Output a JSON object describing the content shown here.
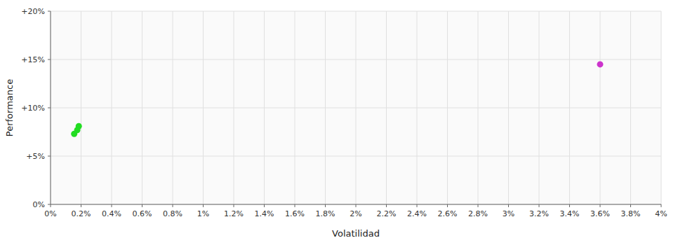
{
  "chart_data": {
    "type": "scatter",
    "xlabel": "Volatilidad",
    "ylabel": "Performance",
    "xlim": [
      0,
      0.04
    ],
    "ylim": [
      0,
      0.2
    ],
    "xticks": [
      {
        "value": 0,
        "label": "0%"
      },
      {
        "value": 0.002,
        "label": "0.2%"
      },
      {
        "value": 0.004,
        "label": "0.4%"
      },
      {
        "value": 0.006,
        "label": "0.6%"
      },
      {
        "value": 0.008,
        "label": "0.8%"
      },
      {
        "value": 0.01,
        "label": "1%"
      },
      {
        "value": 0.012,
        "label": "1.2%"
      },
      {
        "value": 0.014,
        "label": "1.4%"
      },
      {
        "value": 0.016,
        "label": "1.6%"
      },
      {
        "value": 0.018,
        "label": "1.8%"
      },
      {
        "value": 0.02,
        "label": "2%"
      },
      {
        "value": 0.022,
        "label": "2.2%"
      },
      {
        "value": 0.024,
        "label": "2.4%"
      },
      {
        "value": 0.026,
        "label": "2.6%"
      },
      {
        "value": 0.028,
        "label": "2.8%"
      },
      {
        "value": 0.03,
        "label": "3%"
      },
      {
        "value": 0.032,
        "label": "3.2%"
      },
      {
        "value": 0.034,
        "label": "3.4%"
      },
      {
        "value": 0.036,
        "label": "3.6%"
      },
      {
        "value": 0.038,
        "label": "3.8%"
      },
      {
        "value": 0.04,
        "label": "4%"
      }
    ],
    "yticks": [
      {
        "value": 0,
        "label": "0%"
      },
      {
        "value": 0.05,
        "label": "+5%"
      },
      {
        "value": 0.1,
        "label": "+10%"
      },
      {
        "value": 0.15,
        "label": "+15%"
      },
      {
        "value": 0.2,
        "label": "+20%"
      }
    ],
    "grid": true,
    "series": [
      {
        "color": "#22dd22",
        "x": [
          0.00155,
          0.00185,
          0.00175
        ],
        "values": [
          0.073,
          0.081,
          0.077
        ]
      },
      {
        "color": "#cc33cc",
        "x": [
          0.036
        ],
        "values": [
          0.145
        ]
      }
    ]
  }
}
